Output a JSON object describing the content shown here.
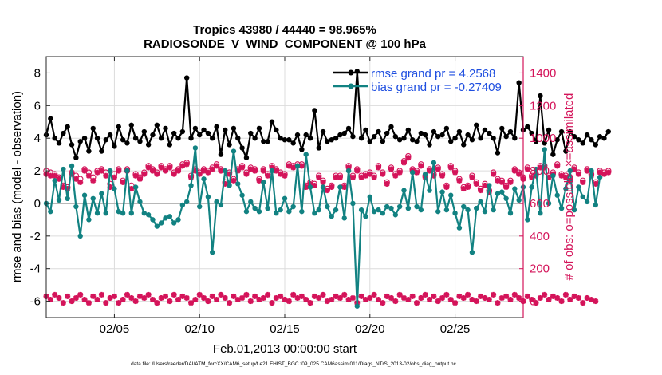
{
  "title": "Tropics 43980 / 44440 = 98.965%",
  "subtitle": "RADIOSONDE_V_WIND_COMPONENT @ 100 hPa",
  "footer": "data file: /Users/raeder/DAI/ATM_forcXX/CAM6_setup/f.e21.FHIST_BGC.f09_025.CAM6assim.011/Diags_NTrS_2013-02/obs_diag_output.nc",
  "colors": {
    "rmse": "#000000",
    "bias": "#128282",
    "obs": "#d4145a",
    "legend_text": "#1f4fe0",
    "zero_line": "#b8b8b8",
    "grid": "#dcdcdc"
  },
  "chart_data": {
    "type": "line",
    "xlabel": "Feb.01,2013 00:00:00 start",
    "ylabel_left": "rmse and bias (model - observation)",
    "ylabel_right": "# of obs: o=possible; ×=assimilated",
    "x_range_days": [
      1,
      29.0
    ],
    "ylim_left": [
      -7,
      9
    ],
    "ylim_right": [
      -100,
      1500
    ],
    "x_ticks": [
      {
        "day": 5,
        "label": "02/05"
      },
      {
        "day": 10,
        "label": "02/10"
      },
      {
        "day": 15,
        "label": "02/15"
      },
      {
        "day": 20,
        "label": "02/20"
      },
      {
        "day": 25,
        "label": "02/25"
      }
    ],
    "y_ticks_left": [
      -6,
      -4,
      -2,
      0,
      2,
      4,
      6,
      8
    ],
    "y_ticks_right": [
      0,
      200,
      400,
      600,
      800,
      1000,
      1200,
      1400
    ],
    "start_day": 1.0,
    "step_days": 0.25,
    "series": [
      {
        "name": "rmse",
        "legend": "rmse grand pr = 4.2568",
        "axis": "left",
        "values": [
          4.2,
          5.2,
          4.0,
          3.7,
          4.3,
          4.7,
          3.6,
          2.8,
          3.8,
          4.0,
          3.2,
          4.6,
          4.0,
          3.2,
          3.9,
          4.2,
          3.5,
          4.7,
          3.9,
          3.7,
          4.8,
          4.0,
          3.8,
          4.4,
          3.6,
          4.2,
          4.8,
          4.0,
          4.6,
          3.6,
          4.3,
          4.0,
          4.4,
          7.7,
          4.0,
          4.6,
          4.2,
          4.5,
          4.3,
          4.0,
          4.7,
          3.0,
          4.5,
          3.6,
          4.6,
          4.0,
          3.4,
          2.8,
          4.3,
          4.0,
          4.6,
          3.8,
          3.8,
          5.0,
          4.5,
          4.0,
          3.9,
          3.9,
          3.7,
          4.2,
          3.3,
          4.2,
          4.0,
          5.7,
          3.4,
          4.4,
          3.8,
          3.9,
          4.0,
          4.2,
          4.3,
          4.6,
          4.1,
          8.1,
          4.0,
          4.5,
          3.8,
          4.1,
          4.4,
          3.8,
          4.3,
          4.7,
          4.1,
          3.9,
          4.0,
          4.5,
          3.9,
          3.8,
          4.3,
          4.2,
          3.6,
          4.4,
          4.1,
          4.2,
          4.6,
          3.8,
          4.0,
          4.4,
          3.6,
          4.2,
          3.9,
          4.8,
          4.0,
          4.5,
          4.3,
          4.0,
          3.1,
          4.6,
          4.1,
          4.4,
          4.0,
          7.4,
          4.5,
          4.7,
          4.3,
          3.8,
          6.6,
          3.7,
          4.5,
          3.0,
          3.9,
          4.4,
          3.2,
          4.4,
          4.1,
          3.9,
          3.7,
          4.2,
          3.9,
          3.6,
          4.1,
          4.0,
          4.4
        ]
      },
      {
        "name": "bias",
        "legend": "bias grand pr = -0.27409",
        "axis": "left",
        "values": [
          0.0,
          -0.5,
          1.4,
          0.2,
          2.1,
          0.3,
          2.3,
          -0.2,
          -2.0,
          0.5,
          -1.0,
          0.3,
          -0.6,
          0.6,
          -0.6,
          2.0,
          0.9,
          -0.5,
          -0.6,
          2.0,
          -0.6,
          1.0,
          0.1,
          -0.6,
          -0.7,
          -1.0,
          -1.4,
          -1.2,
          -0.9,
          -0.8,
          -1.2,
          -1.0,
          -0.1,
          0.1,
          1.1,
          3.4,
          -0.2,
          1.5,
          0.4,
          -3.0,
          0.1,
          -0.1,
          2.0,
          1.1,
          3.2,
          1.2,
          0.5,
          -0.5,
          0.1,
          -0.3,
          -0.5,
          1.3,
          -0.3,
          2.0,
          -0.6,
          -0.4,
          0.3,
          -0.5,
          -0.2,
          2.3,
          -0.5,
          3.0,
          1.0,
          -0.6,
          -0.4,
          1.0,
          -0.2,
          -0.8,
          -0.4,
          1.0,
          -0.9,
          2.0,
          0.0,
          -6.3,
          -0.4,
          -0.8,
          0.4,
          -0.5,
          -0.4,
          -0.6,
          -0.2,
          -0.3,
          -0.7,
          -0.2,
          0.8,
          -0.3,
          1.9,
          -0.2,
          -0.4,
          1.8,
          0.8,
          2.5,
          -0.5,
          0.7,
          -0.4,
          0.5,
          -0.6,
          -1.5,
          -0.2,
          -0.4,
          -3.0,
          -0.3,
          0.1,
          -0.5,
          1.1,
          -0.4,
          0.6,
          0.7,
          0.3,
          -0.6,
          0.9,
          0.2,
          1.0,
          -1.0,
          1.0,
          2.1,
          -0.6,
          3.3,
          0.0,
          1.7,
          0.5,
          -0.3,
          0.9,
          2.0,
          -0.4,
          1.0,
          0.4,
          0.1,
          2.0,
          -0.1,
          1.6
        ]
      },
      {
        "name": "obs_assimilated",
        "axis": "right",
        "values": [
          780,
          770,
          770,
          750,
          700,
          690,
          780,
          750,
          730,
          800,
          770,
          740,
          790,
          800,
          770,
          700,
          760,
          800,
          730,
          800,
          690,
          770,
          750,
          780,
          820,
          800,
          780,
          820,
          800,
          820,
          780,
          800,
          830,
          840,
          760,
          800,
          780,
          800,
          790,
          810,
          830,
          800,
          720,
          780,
          740,
          800,
          820,
          780,
          810,
          800,
          740,
          800,
          770,
          820,
          800,
          780,
          770,
          830,
          820,
          830,
          830,
          700,
          720,
          710,
          760,
          730,
          680,
          700,
          760,
          760,
          700,
          820,
          760,
          800,
          760,
          770,
          780,
          760,
          820,
          780,
          720,
          810,
          770,
          790,
          850,
          880,
          800,
          790,
          830,
          760,
          800,
          770,
          810,
          770,
          700,
          820,
          790,
          740,
          690,
          700,
          760,
          720,
          680,
          710,
          670,
          780,
          740,
          730,
          700,
          730,
          800,
          780,
          750,
          810,
          760,
          770,
          820,
          820,
          760,
          780,
          830,
          770,
          760,
          740,
          810,
          780,
          730,
          800,
          770,
          720,
          790,
          780,
          790
        ]
      },
      {
        "name": "obs_possible",
        "axis": "right",
        "values": [
          800,
          790,
          780,
          760,
          710,
          700,
          790,
          770,
          750,
          810,
          790,
          760,
          800,
          810,
          790,
          720,
          780,
          810,
          740,
          810,
          710,
          780,
          760,
          790,
          830,
          810,
          790,
          830,
          810,
          830,
          790,
          810,
          840,
          850,
          770,
          810,
          790,
          810,
          800,
          820,
          840,
          810,
          730,
          790,
          750,
          810,
          830,
          790,
          820,
          810,
          750,
          810,
          780,
          830,
          810,
          790,
          780,
          840,
          830,
          840,
          840,
          710,
          730,
          720,
          770,
          740,
          690,
          710,
          770,
          770,
          710,
          830,
          770,
          810,
          770,
          780,
          790,
          770,
          830,
          790,
          730,
          820,
          780,
          800,
          860,
          890,
          810,
          800,
          840,
          770,
          810,
          780,
          820,
          780,
          710,
          830,
          800,
          750,
          700,
          710,
          770,
          730,
          690,
          720,
          680,
          790,
          750,
          740,
          710,
          740,
          810,
          790,
          760,
          820,
          770,
          780,
          830,
          830,
          770,
          790,
          840,
          780,
          770,
          750,
          820,
          790,
          740,
          810,
          780,
          730,
          800,
          790,
          800
        ]
      },
      {
        "name": "obs_low",
        "axis": "right",
        "values": [
          30,
          10,
          40,
          20,
          -10,
          30,
          0,
          20,
          40,
          10,
          -10,
          30,
          10,
          40,
          -10,
          20,
          30,
          -10,
          10,
          40,
          20,
          0,
          30,
          20,
          40,
          10,
          -10,
          20,
          30,
          0,
          40,
          10,
          30,
          20,
          -10,
          10,
          40,
          20,
          0,
          30,
          10,
          40,
          20,
          -10,
          30,
          10,
          20,
          40,
          0,
          30,
          10,
          20,
          40,
          -10,
          20,
          30,
          10,
          0,
          40,
          20,
          30,
          10,
          -10,
          30,
          20,
          40,
          0,
          10,
          30,
          20,
          40,
          10,
          20,
          -10,
          30,
          10,
          20,
          40,
          10,
          -10,
          30,
          20,
          0,
          40,
          20,
          10,
          30,
          -10,
          20,
          40,
          10,
          30,
          0,
          20,
          40,
          10,
          -10,
          30,
          20,
          40,
          10,
          0,
          30,
          20,
          10,
          40,
          -10,
          20,
          30,
          10,
          40,
          20,
          0,
          30,
          10,
          -10,
          20,
          40,
          10,
          30,
          20,
          0,
          40,
          10,
          30,
          20,
          -10,
          20,
          10,
          0
        ]
      }
    ]
  }
}
